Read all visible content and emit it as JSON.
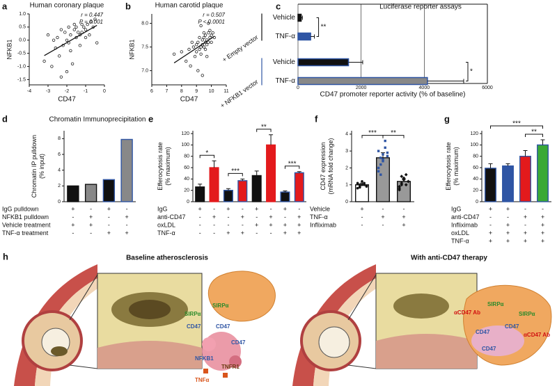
{
  "chart_data": [
    {
      "panel": "a",
      "type": "scatter",
      "title": "Human coronary plaque",
      "annotations": [
        "r = 0.447",
        "P = 0.001"
      ],
      "x_label": "CD47",
      "y_label": "NFKB1",
      "x": [
        -3.2,
        -3.0,
        -2.8,
        -2.6,
        -2.5,
        -2.4,
        -2.3,
        -2.2,
        -2.1,
        -2.0,
        -2.0,
        -1.9,
        -1.8,
        -1.8,
        -1.7,
        -1.6,
        -1.5,
        -1.5,
        -1.4,
        -1.3,
        -1.2,
        -1.2,
        -1.1,
        -1.0,
        -0.9,
        -0.8,
        -0.7,
        -0.6,
        -0.5,
        -0.4,
        -2.3,
        -1.9,
        -1.6,
        -1.3,
        -2.7,
        -1.0
      ],
      "y": [
        -0.8,
        0.2,
        -1.0,
        -0.3,
        0.1,
        -0.6,
        0.4,
        -0.2,
        0.3,
        -1.2,
        0.0,
        0.5,
        -0.4,
        0.2,
        -0.9,
        0.4,
        0.1,
        0.5,
        0.3,
        -0.2,
        0.6,
        0.3,
        0.5,
        0.4,
        0.6,
        0.2,
        0.7,
        0.5,
        0.8,
        -0.1,
        -1.4,
        -0.1,
        0.6,
        0.2,
        0.0,
        0.1
      ],
      "xlim": [
        -4,
        0
      ],
      "xticks": [
        -4,
        -3,
        -2,
        -1,
        0
      ],
      "ylim": [
        -1.7,
        1.0
      ],
      "yticks": [
        -1.5,
        {
          "value": -1,
          "label": "-1.0"
        },
        -0.5,
        {
          "value": 0,
          "label": "0.0"
        },
        0.5,
        {
          "value": 1,
          "label": "1.0"
        }
      ],
      "color": "#222"
    },
    {
      "panel": "b",
      "type": "scatter",
      "title": "Human carotid plaque",
      "annotations": [
        "r = 0.507",
        "P < 0.0001"
      ],
      "x_label": "CD47",
      "y_label": "NFKB1",
      "x": [
        7.5,
        8.0,
        8.3,
        8.5,
        8.6,
        8.8,
        8.9,
        9.0,
        9.0,
        9.1,
        9.2,
        9.2,
        9.3,
        9.3,
        9.4,
        9.4,
        9.5,
        9.5,
        9.5,
        9.6,
        9.6,
        9.6,
        9.7,
        9.7,
        9.8,
        9.8,
        9.9,
        9.9,
        10.0,
        10.0,
        10.1,
        10.2,
        9.1,
        9.4,
        9.7,
        8.7,
        9.3,
        9.8
      ],
      "y": [
        7.35,
        7.4,
        7.2,
        7.45,
        7.1,
        7.5,
        7.3,
        7.55,
        7.4,
        7.6,
        7.45,
        7.7,
        7.5,
        7.35,
        7.65,
        7.55,
        7.7,
        7.5,
        7.8,
        7.6,
        7.45,
        7.75,
        7.65,
        7.55,
        7.8,
        7.6,
        7.7,
        7.85,
        7.75,
        7.6,
        7.8,
        7.7,
        7.0,
        6.9,
        7.3,
        7.6,
        7.95,
        8.0
      ],
      "xlim": [
        6,
        11
      ],
      "xticks": [
        6,
        7,
        8,
        9,
        10,
        11
      ],
      "ylim": [
        6.7,
        8.2
      ],
      "yticks": [
        {
          "value": 7,
          "label": "7.0"
        },
        7.5,
        {
          "value": 8,
          "label": "8.0"
        }
      ],
      "color": "#222"
    },
    {
      "panel": "c",
      "type": "hbar",
      "title": "Luciferase reporter assays",
      "x_label": "CD47 promoter reporter activity (% of baseline)",
      "groups": [
        "+ Empty vector",
        "+ NFKB1 vector"
      ],
      "categories": [
        "Vehicle",
        "TNF-α",
        "Vehicle",
        "TNF-α"
      ],
      "values": [
        100,
        400,
        1600,
        4100
      ],
      "errors": [
        40,
        120,
        450,
        1150
      ],
      "colors": [
        "#111111",
        "#2f55a4",
        "#111111",
        "#888888"
      ],
      "edge_colors": [
        "#111111",
        "#2f55a4",
        "#2f55a4",
        "#2f55a4"
      ],
      "xlim": [
        0,
        6000
      ],
      "xticks": [
        0,
        2000,
        4000,
        6000
      ],
      "grid": true,
      "significance": [
        "**",
        "*"
      ]
    },
    {
      "panel": "d",
      "type": "bar",
      "title": "Chromatin Immunoprecipitation",
      "y_label": [
        "Chromatin IP pulldown",
        "(% input)"
      ],
      "values": [
        2,
        2.2,
        2.8,
        7.9
      ],
      "colors": [
        "#111111",
        "#888888",
        "#111111",
        "#888888"
      ],
      "edge_colors": [
        "#111111",
        "#111111",
        "#2f55a4",
        "#2f55a4"
      ],
      "ylim": [
        0,
        9
      ],
      "yticks": [
        0,
        2,
        4,
        6,
        8
      ],
      "conditions": [
        {
          "label": "IgG pulldown",
          "marks": [
            "+",
            "-",
            "+",
            "-"
          ]
        },
        {
          "label": "NFKB1 pulldown",
          "marks": [
            "-",
            "+",
            "-",
            "+"
          ]
        },
        {
          "label": "Vehicle treatment",
          "marks": [
            "+",
            "+",
            "-",
            "-"
          ]
        },
        {
          "label": "TNF-α treatment",
          "marks": [
            "-",
            "-",
            "+",
            "+"
          ]
        }
      ]
    },
    {
      "panel": "e",
      "type": "bar",
      "y_label": [
        "Efferocytosis rate",
        "(% maximum)"
      ],
      "values": [
        26,
        60,
        20,
        37,
        46,
        100,
        17,
        51
      ],
      "errors": [
        5,
        12,
        3,
        3,
        8,
        18,
        2,
        2
      ],
      "colors": [
        "#111111",
        "#e31a1c",
        "#111111",
        "#e31a1c",
        "#111111",
        "#e31a1c",
        "#111111",
        "#e31a1c"
      ],
      "edge_colors": [
        "#111111",
        "#e31a1c",
        "#2f55a4",
        "#2f55a4",
        "#111111",
        "#e31a1c",
        "#2f55a4",
        "#2f55a4"
      ],
      "ylim": [
        0,
        125
      ],
      "yticks": [
        0,
        20,
        40,
        60,
        80,
        100,
        120
      ],
      "significance": [
        "*",
        "***",
        "**",
        "***"
      ],
      "conditions": [
        {
          "label": "IgG",
          "marks": [
            "+",
            "-",
            "+",
            "-",
            "+",
            "-",
            "+",
            "-"
          ]
        },
        {
          "label": "anti-CD47",
          "marks": [
            "-",
            "+",
            "-",
            "+",
            "-",
            "+",
            "-",
            "+"
          ]
        },
        {
          "label": "oxLDL",
          "marks": [
            "-",
            "-",
            "-",
            "-",
            "+",
            "+",
            "+",
            "+"
          ]
        },
        {
          "label": "TNF-α",
          "marks": [
            "-",
            "-",
            "+",
            "+",
            "-",
            "-",
            "+",
            "+"
          ]
        }
      ]
    },
    {
      "panel": "f",
      "type": "bar",
      "y_label": [
        "CD47 expression",
        "(mRNA fold change)"
      ],
      "values": [
        1.0,
        2.6,
        1.2
      ],
      "errors": [
        0.1,
        0.3,
        0.15
      ],
      "points": [
        [
          0.8,
          0.9,
          1.0,
          1.1,
          0.95,
          1.05,
          0.85,
          1.2,
          1.0,
          0.9,
          1.1,
          1.0
        ],
        [
          1.8,
          2.2,
          2.5,
          3.6,
          2.9,
          3.0,
          1.6,
          2.4,
          3.2,
          2.7,
          2.0,
          2.6,
          2.8
        ],
        [
          0.7,
          1.0,
          1.3,
          1.6,
          1.2,
          0.9,
          1.1,
          1.4,
          1.0,
          1.2,
          0.8,
          1.5
        ]
      ],
      "colors": [
        "#ffffff",
        "#999999",
        "#999999"
      ],
      "edge_colors": [
        "#111111",
        "#111111",
        "#111111"
      ],
      "point_colors": [
        "#111111",
        "#2f55a4",
        "#111111"
      ],
      "ylim": [
        0,
        4.2
      ],
      "yticks": [
        0,
        1,
        2,
        3,
        4
      ],
      "significance": [
        "***",
        "**"
      ],
      "conditions": [
        {
          "label": "Vehicle",
          "marks": [
            "+",
            "-",
            "-"
          ]
        },
        {
          "label": "TNF-α",
          "marks": [
            "-",
            "+",
            "+"
          ]
        },
        {
          "label": "Infliximab",
          "marks": [
            "-",
            "-",
            "+"
          ]
        }
      ]
    },
    {
      "panel": "g",
      "type": "bar",
      "y_label": [
        "Efferocytosis rate",
        "(% maximum)"
      ],
      "values": [
        59,
        63,
        80,
        100
      ],
      "errors": [
        8,
        4,
        10,
        9
      ],
      "colors": [
        "#111111",
        "#2f55a4",
        "#e31a1c",
        "#3aa935"
      ],
      "edge_colors": [
        "#2f55a4",
        "#2f55a4",
        "#2f55a4",
        "#2f55a4"
      ],
      "ylim": [
        0,
        125
      ],
      "yticks": [
        0,
        20,
        40,
        60,
        80,
        100,
        120
      ],
      "significance": [
        "***",
        "**"
      ],
      "conditions": [
        {
          "label": "IgG",
          "marks": [
            "+",
            "+",
            "-",
            "-"
          ]
        },
        {
          "label": "anti-CD47",
          "marks": [
            "-",
            "-",
            "+",
            "+"
          ]
        },
        {
          "label": "Infliximab",
          "marks": [
            "-",
            "+",
            "-",
            "+"
          ]
        },
        {
          "label": "oxLDL",
          "marks": [
            "+",
            "+",
            "+",
            "+"
          ]
        },
        {
          "label": "TNF-α",
          "marks": [
            "+",
            "+",
            "+",
            "+"
          ]
        }
      ]
    }
  ],
  "illustration": {
    "panel": "h",
    "titles": [
      "Baseline atherosclerosis",
      "With anti-CD47 therapy"
    ],
    "labels": [
      "SIRPα",
      "SIRPα",
      "CD47",
      "CD47",
      "CD47",
      "NFKB1",
      "TNFR1",
      "TNFα",
      "αCD47 Ab",
      "SIRPα",
      "SIRPα",
      "αCD47 Ab",
      "CD47",
      "CD47",
      "CD47"
    ]
  }
}
